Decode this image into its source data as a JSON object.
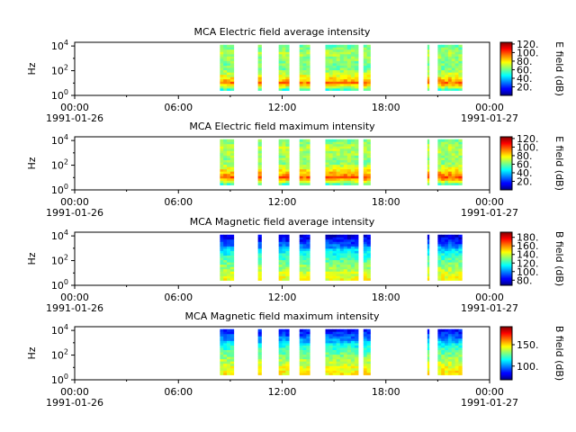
{
  "chart_data": [
    {
      "type": "heatmap",
      "title": "MCA  Electric field average intensity",
      "ylabel": "Hz",
      "colorbar_label": "E field (dB)",
      "y_ticks": [
        "10^0",
        "10^2",
        "10^4"
      ],
      "x_ticks": [
        "00:00",
        "06:00",
        "12:00",
        "18:00",
        "00:00"
      ],
      "x_dates": [
        "1991-01-26",
        "1991-01-27"
      ],
      "xlim_hours": [
        0,
        24
      ],
      "ylim_log10_hz": [
        0,
        4.3
      ],
      "cbar_range": [
        0,
        124
      ],
      "cbar_ticks": [
        "20.",
        "40.",
        "60.",
        "80.",
        "100.",
        "120."
      ],
      "cbar_tick_values": [
        20,
        40,
        60,
        80,
        100,
        120
      ],
      "colormap": "jet",
      "data_intervals_hours": [
        [
          8.4,
          9.2
        ],
        [
          10.6,
          10.8
        ],
        [
          11.8,
          12.4
        ],
        [
          13.0,
          13.6
        ],
        [
          14.5,
          16.4
        ],
        [
          16.7,
          17.1
        ],
        [
          20.4,
          20.5
        ],
        [
          21.0,
          22.4
        ]
      ],
      "profile_db": [
        45,
        95,
        75,
        60,
        62,
        68,
        58
      ],
      "profile_note_freq_log10": [
        0.4,
        1.0,
        1.6,
        2.2,
        2.8,
        3.4,
        4.0
      ]
    },
    {
      "type": "heatmap",
      "title": "MCA  Electric field maximum intensity",
      "ylabel": "Hz",
      "colorbar_label": "E field (dB)",
      "y_ticks": [
        "10^0",
        "10^2",
        "10^4"
      ],
      "x_ticks": [
        "00:00",
        "06:00",
        "12:00",
        "18:00",
        "00:00"
      ],
      "x_dates": [
        "1991-01-26",
        "1991-01-27"
      ],
      "xlim_hours": [
        0,
        24
      ],
      "ylim_log10_hz": [
        0,
        4.3
      ],
      "cbar_range": [
        0,
        124
      ],
      "cbar_ticks": [
        "20.",
        "40.",
        "60.",
        "80.",
        "100.",
        "120."
      ],
      "cbar_tick_values": [
        20,
        40,
        60,
        80,
        100,
        120
      ],
      "colormap": "jet",
      "data_intervals_hours": [
        [
          8.4,
          9.2
        ],
        [
          10.6,
          10.8
        ],
        [
          11.8,
          12.4
        ],
        [
          13.0,
          13.6
        ],
        [
          14.5,
          16.4
        ],
        [
          16.7,
          17.1
        ],
        [
          20.4,
          20.5
        ],
        [
          21.0,
          22.4
        ]
      ],
      "profile_db": [
        48,
        98,
        80,
        62,
        65,
        70,
        60
      ],
      "profile_note_freq_log10": [
        0.4,
        1.0,
        1.6,
        2.2,
        2.8,
        3.4,
        4.0
      ]
    },
    {
      "type": "heatmap",
      "title": "MCA  Magnetic field average intensity",
      "ylabel": "Hz",
      "colorbar_label": "B field (dB)",
      "y_ticks": [
        "10^0",
        "10^2",
        "10^4"
      ],
      "x_ticks": [
        "00:00",
        "06:00",
        "12:00",
        "18:00",
        "00:00"
      ],
      "x_dates": [
        "1991-01-26",
        "1991-01-27"
      ],
      "xlim_hours": [
        0,
        24
      ],
      "ylim_log10_hz": [
        0,
        4.3
      ],
      "cbar_range": [
        68,
        192
      ],
      "cbar_ticks": [
        "80.",
        "100.",
        "120.",
        "140.",
        "160.",
        "180."
      ],
      "cbar_tick_values": [
        80,
        100,
        120,
        140,
        160,
        180
      ],
      "colormap": "jet",
      "data_intervals_hours": [
        [
          8.4,
          9.2
        ],
        [
          10.6,
          10.8
        ],
        [
          11.8,
          12.4
        ],
        [
          13.0,
          13.6
        ],
        [
          14.5,
          16.4
        ],
        [
          16.7,
          17.1
        ],
        [
          20.4,
          20.5
        ],
        [
          21.0,
          22.4
        ]
      ],
      "profile_db": [
        145,
        140,
        132,
        122,
        112,
        92,
        78
      ],
      "profile_note_freq_log10": [
        0.4,
        1.0,
        1.6,
        2.2,
        2.8,
        3.4,
        4.0
      ]
    },
    {
      "type": "heatmap",
      "title": "MCA  Magnetic field maximum intensity",
      "ylabel": "Hz",
      "colorbar_label": "B field (dB)",
      "y_ticks": [
        "10^0",
        "10^2",
        "10^4"
      ],
      "x_ticks": [
        "00:00",
        "06:00",
        "12:00",
        "18:00",
        "00:00"
      ],
      "x_dates": [
        "1991-01-26",
        "1991-01-27"
      ],
      "xlim_hours": [
        0,
        24
      ],
      "ylim_log10_hz": [
        0,
        4.3
      ],
      "cbar_range": [
        68,
        192
      ],
      "cbar_ticks": [
        "100.",
        "150."
      ],
      "cbar_tick_values": [
        100,
        150
      ],
      "colormap": "jet",
      "data_intervals_hours": [
        [
          8.4,
          9.2
        ],
        [
          10.6,
          10.8
        ],
        [
          11.8,
          12.4
        ],
        [
          13.0,
          13.6
        ],
        [
          14.5,
          16.4
        ],
        [
          16.7,
          17.1
        ],
        [
          20.4,
          20.5
        ],
        [
          21.0,
          22.4
        ]
      ],
      "profile_db": [
        148,
        143,
        136,
        126,
        116,
        98,
        84
      ],
      "profile_note_freq_log10": [
        0.4,
        1.0,
        1.6,
        2.2,
        2.8,
        3.4,
        4.0
      ]
    }
  ]
}
